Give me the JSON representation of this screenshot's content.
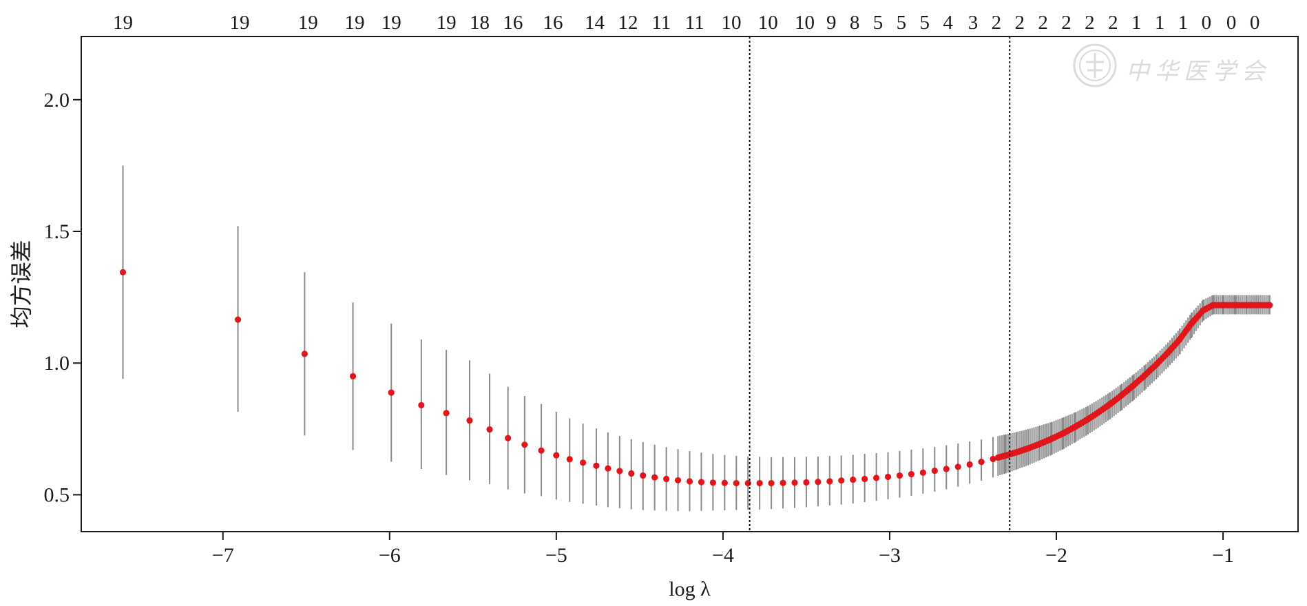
{
  "chart_data": {
    "type": "scatter",
    "title": "",
    "xlabel": "log  λ",
    "ylabel": "均方误差",
    "xlim": [
      -7.85,
      -0.55
    ],
    "ylim": [
      0.36,
      2.24
    ],
    "xticks": [
      -7,
      -6,
      -5,
      -4,
      -3,
      -2,
      -1
    ],
    "xtick_labels": [
      "−7",
      "−6",
      "−5",
      "−4",
      "−3",
      "−2",
      "−1"
    ],
    "yticks": [
      0.5,
      1.0,
      1.5,
      2.0
    ],
    "ytick_labels": [
      "0.5",
      "1.0",
      "1.5",
      "2.0"
    ],
    "top_axis_label_x": [
      -7.6,
      -6.9,
      -6.49,
      -6.21,
      -5.99,
      -5.66,
      -5.46,
      -5.26,
      -5.02,
      -4.77,
      -4.57,
      -4.37,
      -4.17,
      -3.95,
      -3.73,
      -3.51,
      -3.35,
      -3.21,
      -3.07,
      -2.93,
      -2.79,
      -2.65,
      -2.5,
      -2.36,
      -2.22,
      -2.08,
      -1.94,
      -1.8,
      -1.66,
      -1.52,
      -1.38,
      -1.24,
      -1.1,
      -0.95,
      -0.81
    ],
    "top_axis_labels": [
      "19",
      "19",
      "19",
      "19",
      "19",
      "19",
      "18",
      "16",
      "16",
      "14",
      "12",
      "11",
      "11",
      "10",
      "10",
      "10",
      "9",
      "8",
      "5",
      "5",
      "5",
      "4",
      "3",
      "2",
      "2",
      "2",
      "2",
      "2",
      "2",
      "1",
      "1",
      "1",
      "0",
      "0",
      "0"
    ],
    "vlines": [
      -3.84,
      -2.28
    ],
    "grid": false,
    "legend": "none",
    "series": [
      {
        "x": [
          -7.6,
          -6.91,
          -6.51,
          -6.22,
          -5.99,
          -5.81,
          -5.66,
          -5.52,
          -5.4,
          -5.29,
          -5.19,
          -5.09,
          -5.0,
          -4.92,
          -4.84,
          -4.76,
          -4.69,
          -4.62,
          -4.55,
          -4.48,
          -4.41,
          -4.34,
          -4.27,
          -4.2,
          -4.13,
          -4.06,
          -3.99,
          -3.92,
          -3.85,
          -3.78,
          -3.71,
          -3.64,
          -3.57,
          -3.5,
          -3.43,
          -3.36,
          -3.29,
          -3.22,
          -3.15,
          -3.08,
          -3.01,
          -2.94,
          -2.87,
          -2.8,
          -2.73,
          -2.66,
          -2.59,
          -2.52,
          -2.45,
          -2.38,
          -2.31,
          -2.24,
          -2.17,
          -2.1,
          -2.03,
          -1.96,
          -1.89,
          -1.82,
          -1.75,
          -1.68,
          -1.61,
          -1.54,
          -1.47,
          -1.4,
          -1.33,
          -1.26,
          -1.19,
          -1.12,
          -1.06,
          -1.0,
          -0.93,
          -0.86,
          -0.79,
          -0.72
        ],
        "y": [
          1.345,
          1.165,
          1.035,
          0.95,
          0.888,
          0.84,
          0.81,
          0.782,
          0.748,
          0.715,
          0.69,
          0.668,
          0.65,
          0.635,
          0.622,
          0.61,
          0.6,
          0.59,
          0.581,
          0.573,
          0.566,
          0.56,
          0.555,
          0.551,
          0.548,
          0.546,
          0.545,
          0.544,
          0.544,
          0.544,
          0.544,
          0.545,
          0.546,
          0.547,
          0.549,
          0.551,
          0.554,
          0.557,
          0.56,
          0.564,
          0.568,
          0.573,
          0.578,
          0.584,
          0.591,
          0.598,
          0.606,
          0.615,
          0.625,
          0.636,
          0.648,
          0.661,
          0.676,
          0.693,
          0.712,
          0.733,
          0.757,
          0.783,
          0.812,
          0.843,
          0.877,
          0.914,
          0.953,
          0.995,
          1.04,
          1.09,
          1.15,
          1.2,
          1.22,
          1.22,
          1.22,
          1.22,
          1.22,
          1.22
        ],
        "err_low": [
          0.94,
          0.815,
          0.725,
          0.67,
          0.625,
          0.598,
          0.575,
          0.555,
          0.54,
          0.52,
          0.505,
          0.495,
          0.482,
          0.473,
          0.466,
          0.459,
          0.453,
          0.449,
          0.445,
          0.442,
          0.44,
          0.439,
          0.438,
          0.438,
          0.439,
          0.44,
          0.441,
          0.442,
          0.443,
          0.444,
          0.446,
          0.448,
          0.45,
          0.453,
          0.456,
          0.459,
          0.463,
          0.467,
          0.472,
          0.477,
          0.483,
          0.489,
          0.496,
          0.504,
          0.512,
          0.521,
          0.531,
          0.542,
          0.553,
          0.566,
          0.58,
          0.595,
          0.612,
          0.631,
          0.651,
          0.673,
          0.698,
          0.725,
          0.754,
          0.786,
          0.82,
          0.857,
          0.897,
          0.939,
          0.984,
          1.033,
          1.095,
          1.16,
          1.185,
          1.185,
          1.185,
          1.185,
          1.185,
          1.185
        ],
        "err_high": [
          1.75,
          1.52,
          1.345,
          1.23,
          1.15,
          1.09,
          1.05,
          1.01,
          0.96,
          0.91,
          0.875,
          0.845,
          0.815,
          0.79,
          0.77,
          0.752,
          0.737,
          0.723,
          0.711,
          0.7,
          0.69,
          0.681,
          0.673,
          0.666,
          0.66,
          0.655,
          0.651,
          0.648,
          0.645,
          0.644,
          0.643,
          0.643,
          0.643,
          0.644,
          0.645,
          0.647,
          0.649,
          0.652,
          0.655,
          0.658,
          0.662,
          0.666,
          0.671,
          0.676,
          0.682,
          0.688,
          0.695,
          0.702,
          0.71,
          0.719,
          0.728,
          0.738,
          0.749,
          0.762,
          0.776,
          0.793,
          0.812,
          0.834,
          0.86,
          0.888,
          0.92,
          0.955,
          0.992,
          1.033,
          1.078,
          1.13,
          1.19,
          1.24,
          1.258,
          1.258,
          1.258,
          1.258,
          1.258,
          1.258
        ]
      }
    ],
    "colors": {
      "point": "#e0161a",
      "errorbar": "#8a8a8a",
      "axis": "#1a1a1a",
      "vline": "#111111"
    }
  },
  "watermark": {
    "text": "中华医学会",
    "icon": "seal-emblem-icon"
  }
}
